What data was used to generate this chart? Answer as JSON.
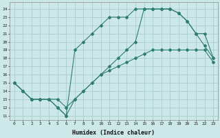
{
  "bg_color": "#cce8e8",
  "line_color": "#2e7d6e",
  "grid_color": "#aacccc",
  "xlabel": "Humidex (Indice chaleur)",
  "xlim": [
    -0.5,
    23.5
  ],
  "ylim": [
    10.5,
    24.8
  ],
  "xticks": [
    0,
    1,
    2,
    3,
    4,
    5,
    6,
    7,
    8,
    9,
    10,
    11,
    12,
    13,
    14,
    15,
    16,
    17,
    18,
    19,
    20,
    21,
    22,
    23
  ],
  "yticks": [
    11,
    12,
    13,
    14,
    15,
    16,
    17,
    18,
    19,
    20,
    21,
    22,
    23,
    24
  ],
  "line1_x": [
    0,
    1,
    2,
    3,
    4,
    5,
    6,
    7,
    8,
    9,
    10,
    11,
    12,
    13,
    14,
    15,
    16,
    17,
    18,
    19,
    20,
    21,
    22,
    23
  ],
  "line1_y": [
    15,
    14,
    13,
    13,
    13,
    13,
    12,
    13,
    14,
    15,
    16,
    17,
    18,
    19,
    20,
    24,
    24,
    24,
    24,
    23.5,
    22.5,
    21,
    19.5,
    18
  ],
  "line2_x": [
    0,
    1,
    2,
    3,
    4,
    5,
    6,
    7,
    8,
    9,
    10,
    11,
    12,
    13,
    14,
    15,
    16,
    17,
    18,
    19,
    20,
    21,
    22,
    23
  ],
  "line2_y": [
    15,
    14,
    13,
    13,
    13,
    12,
    11,
    19,
    20,
    21,
    22,
    23,
    23,
    23,
    24,
    24,
    24,
    24,
    24,
    23.5,
    22.5,
    21,
    21,
    18
  ],
  "line3_x": [
    0,
    1,
    2,
    3,
    4,
    5,
    6,
    7,
    8,
    9,
    10,
    11,
    12,
    13,
    14,
    15,
    16,
    17,
    18,
    19,
    20,
    21,
    22,
    23
  ],
  "line3_y": [
    15,
    14,
    13,
    13,
    13,
    12,
    11,
    13,
    14,
    15,
    16,
    16.5,
    17,
    17.5,
    18,
    18.5,
    19,
    19,
    19,
    19,
    19,
    19,
    19,
    17.5
  ]
}
